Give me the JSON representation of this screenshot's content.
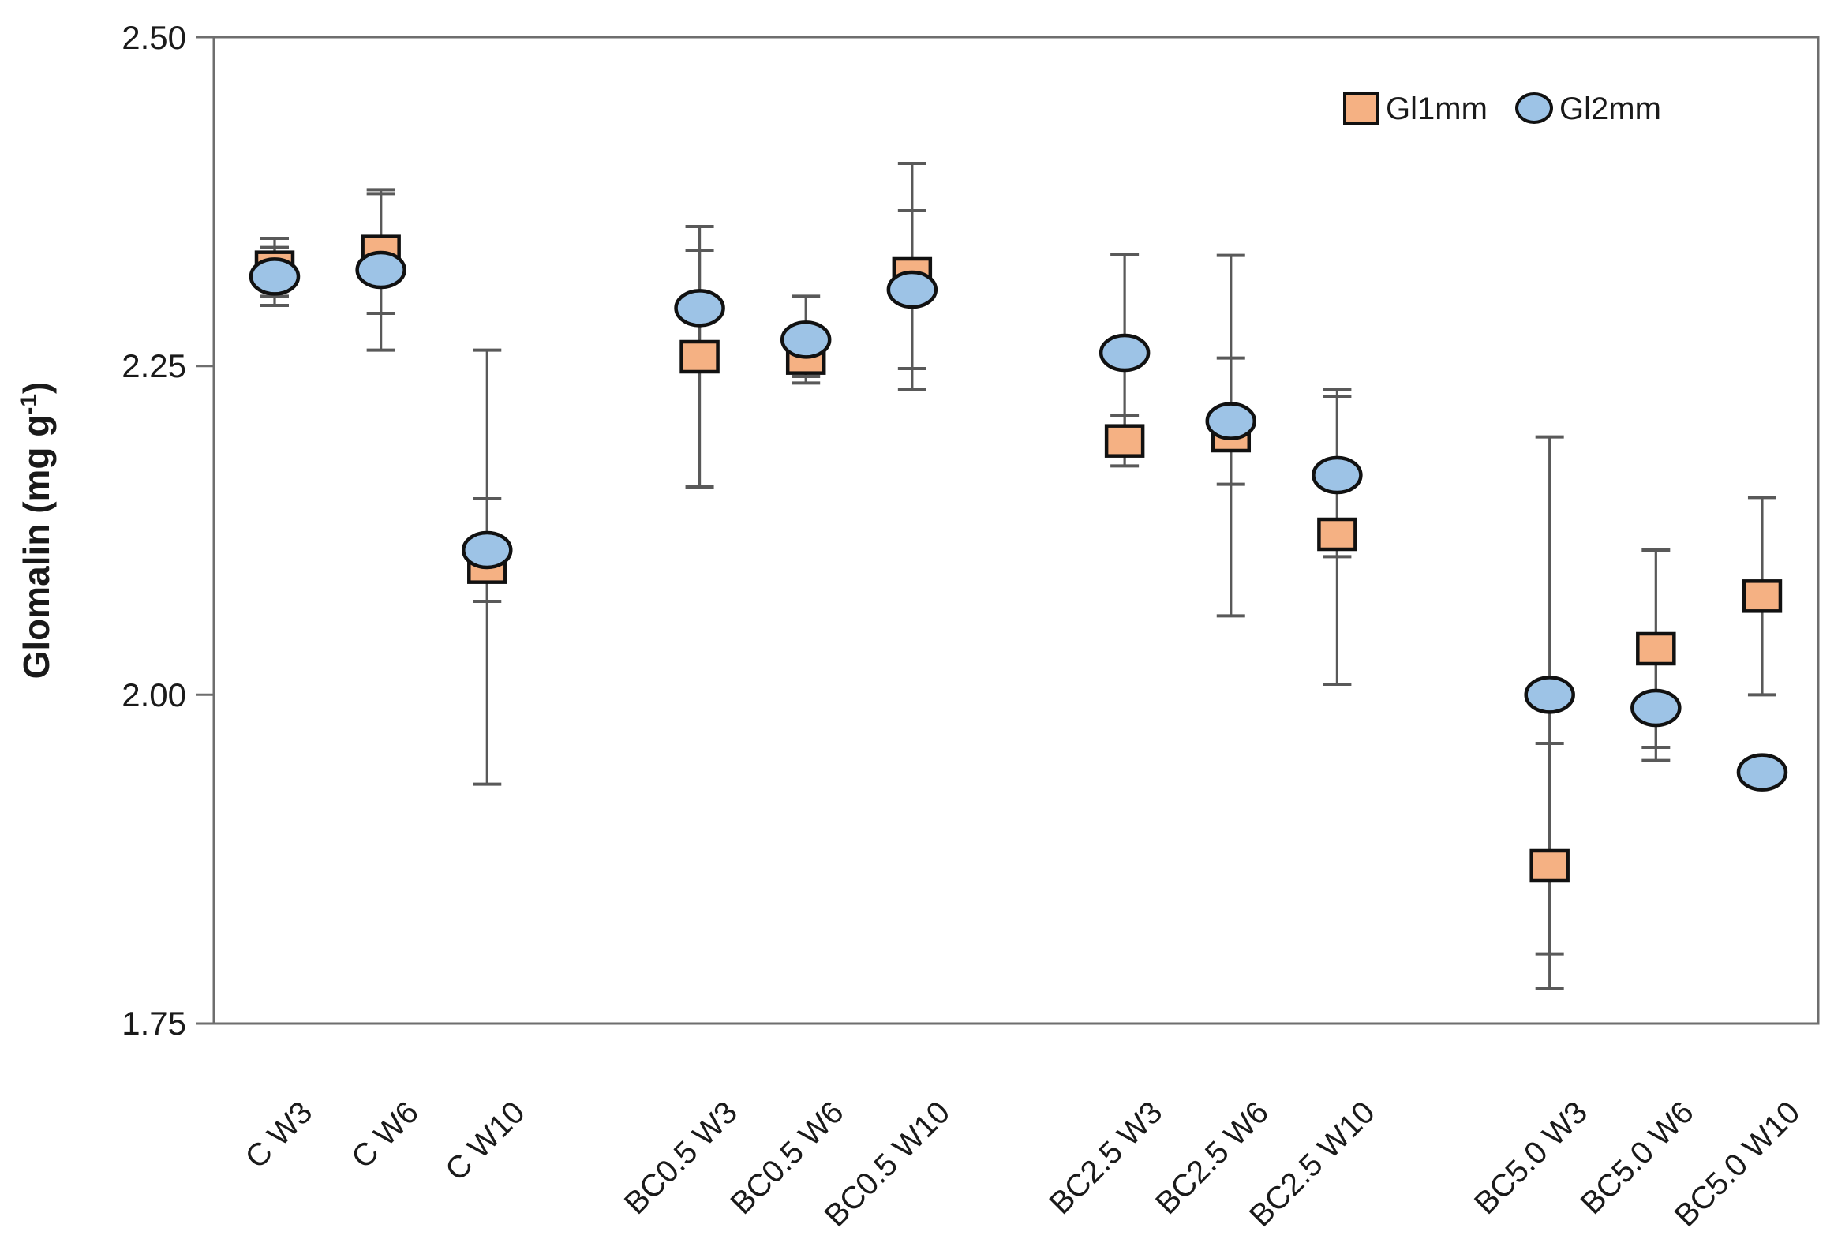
{
  "chart_data": {
    "type": "scatter",
    "title": "",
    "ylabel_main": "Glomalin (mg g",
    "ylabel_sup": "-1",
    "ylabel_close": ")",
    "ylim": [
      1.75,
      2.5
    ],
    "ytick_labels": [
      "2.50",
      "2.25",
      "2.00",
      "1.75"
    ],
    "ytick_values": [
      2.5,
      2.25,
      2.0,
      1.75
    ],
    "grid": false,
    "legend_position": "top-right-inside",
    "legend_gl1mm": "Gl1mm",
    "legend_gl2mm": "Gl2mm",
    "categories": [
      "C W3",
      "C W6",
      "C W10",
      "BC0.5 W3",
      "BC0.5 W6",
      "BC0.5 W10",
      "BC2.5 W3",
      "BC2.5 W6",
      "BC2.5 W10",
      "BC5.0 W3",
      "BC5.0 W6",
      "BC5.0 W10"
    ],
    "category_slots": [
      0,
      1,
      2,
      4,
      5,
      6,
      8,
      9,
      10,
      12,
      13,
      14
    ],
    "colors": {
      "gl1mm_fill": "#F5B183",
      "gl2mm_fill": "#9DC3E6",
      "marker_stroke": "#111111",
      "error_bar": "#595959",
      "axis": "#6E6E6E"
    },
    "series": [
      {
        "name": "Gl1mm",
        "marker": "square",
        "values": [
          2.325,
          2.337,
          2.097,
          2.257,
          2.256,
          2.32,
          2.193,
          2.197,
          2.122,
          1.87,
          2.035,
          2.075
        ],
        "err_lo": [
          2.303,
          2.29,
          1.932,
          2.158,
          2.242,
          2.232,
          2.174,
          2.06,
          2.008,
          1.777,
          1.96,
          2.0
        ],
        "err_hi": [
          2.347,
          2.384,
          2.262,
          2.356,
          2.27,
          2.404,
          2.212,
          2.334,
          2.232,
          1.963,
          2.11,
          2.15
        ]
      },
      {
        "name": "Gl2mm",
        "marker": "circle",
        "values": [
          2.318,
          2.323,
          2.11,
          2.294,
          2.27,
          2.308,
          2.26,
          2.208,
          2.167,
          2.0,
          1.99,
          1.941
        ],
        "err_lo": [
          2.296,
          2.262,
          2.071,
          2.25,
          2.237,
          2.248,
          2.185,
          2.16,
          2.105,
          1.803,
          1.95,
          null
        ],
        "err_hi": [
          2.34,
          2.381,
          2.149,
          2.338,
          2.303,
          2.368,
          2.335,
          2.256,
          2.227,
          2.196,
          2.03,
          null
        ]
      }
    ]
  }
}
